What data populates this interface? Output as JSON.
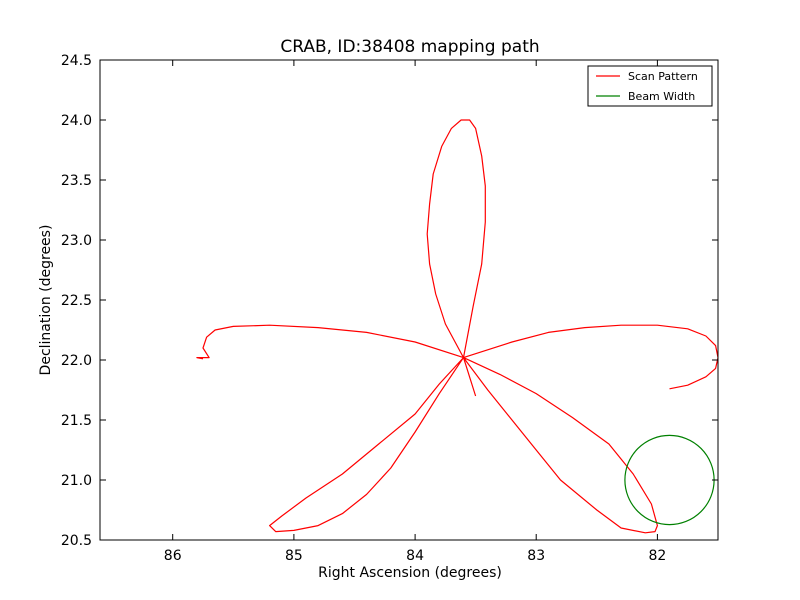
{
  "chart_data": {
    "type": "line",
    "title": "CRAB, ID:38408 mapping path",
    "xlabel": "Right Ascension (degrees)",
    "ylabel": "Declination (degrees)",
    "xlim": [
      86.6,
      81.5
    ],
    "ylim": [
      20.5,
      24.5
    ],
    "x_inverted": true,
    "grid": false,
    "legend_placement": "top-right",
    "xticks": [
      86,
      85,
      84,
      83,
      82
    ],
    "yticks": [
      20.5,
      21.0,
      21.5,
      22.0,
      22.5,
      23.0,
      23.5,
      24.0,
      24.5
    ],
    "colors": {
      "scan": "#ff0000",
      "beam": "#008000"
    },
    "series": [
      {
        "name": "Scan Pattern",
        "style": "line",
        "x": [
          81.9,
          81.75,
          81.6,
          81.52,
          81.5,
          81.52,
          81.6,
          81.75,
          82.0,
          82.3,
          82.6,
          82.9,
          83.2,
          83.6,
          84.0,
          84.4,
          84.8,
          85.2,
          85.5,
          85.65,
          85.72,
          85.75,
          85.7,
          85.8,
          85.75
        ],
        "y": [
          21.76,
          21.79,
          21.86,
          21.93,
          22.02,
          22.12,
          22.2,
          22.26,
          22.29,
          22.29,
          22.27,
          22.23,
          22.15,
          22.02,
          22.15,
          22.23,
          22.27,
          22.29,
          22.28,
          22.25,
          22.19,
          22.1,
          22.02,
          22.02,
          22.01
        ]
      },
      {
        "name": "",
        "style": "line",
        "x": [
          83.6,
          83.75,
          83.83,
          83.88,
          83.9,
          83.88,
          83.85,
          83.78,
          83.7,
          83.62,
          83.55,
          83.5,
          83.45,
          83.42,
          83.42,
          83.45,
          83.52,
          83.6,
          83.5
        ],
        "y": [
          22.02,
          22.3,
          22.55,
          22.8,
          23.05,
          23.3,
          23.55,
          23.78,
          23.93,
          24.0,
          24.0,
          23.93,
          23.7,
          23.45,
          23.15,
          22.8,
          22.45,
          22.02,
          21.7
        ]
      },
      {
        "name": "",
        "style": "line",
        "x": [
          83.6,
          83.3,
          83.0,
          82.7,
          82.4,
          82.2,
          82.05,
          82.0,
          82.02,
          82.1,
          82.3,
          82.5,
          82.8,
          83.0,
          83.2,
          83.4,
          83.6,
          83.8,
          84.0,
          84.3,
          84.6,
          84.9,
          85.1,
          85.2,
          85.15,
          85.0,
          84.8,
          84.6,
          84.4,
          84.2,
          84.0,
          83.8,
          83.6
        ],
        "y": [
          22.02,
          21.88,
          21.72,
          21.52,
          21.3,
          21.05,
          20.8,
          20.62,
          20.57,
          20.56,
          20.6,
          20.75,
          21.0,
          21.25,
          21.5,
          21.75,
          22.02,
          21.8,
          21.55,
          21.3,
          21.05,
          20.85,
          20.7,
          20.62,
          20.57,
          20.58,
          20.62,
          20.72,
          20.88,
          21.1,
          21.4,
          21.72,
          22.02
        ]
      },
      {
        "name": "Beam Width",
        "style": "circle",
        "center": [
          81.9,
          21.0
        ],
        "radius": 0.37
      }
    ]
  }
}
